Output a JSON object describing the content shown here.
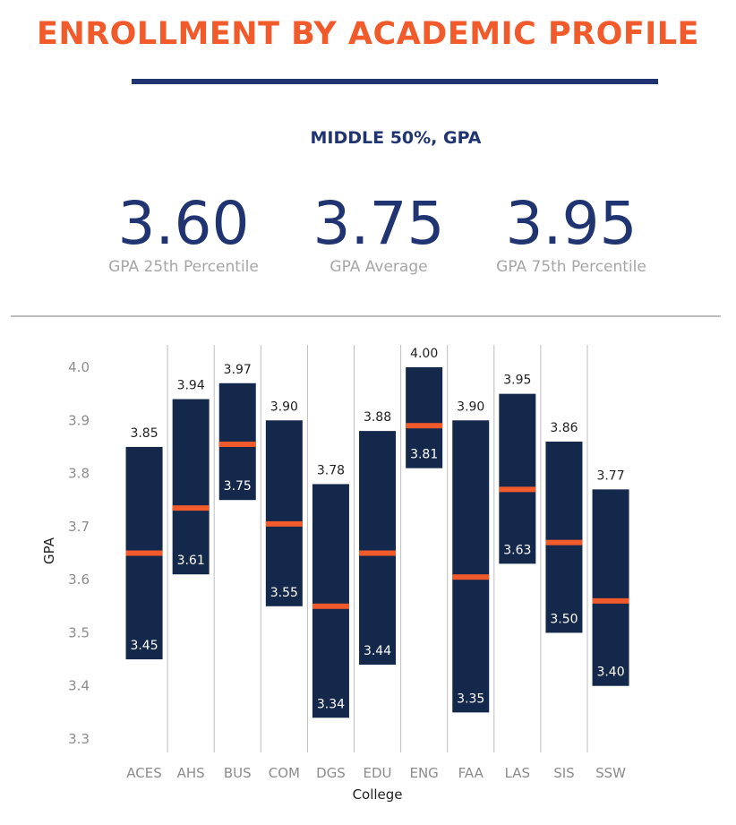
{
  "header": {
    "title": "ENROLLMENT BY ACADEMIC PROFILE",
    "subtitle": "MIDDLE 50%, GPA"
  },
  "stats": [
    {
      "value": "3.60",
      "label": "GPA 25th Percentile"
    },
    {
      "value": "3.75",
      "label": "GPA Average"
    },
    {
      "value": "3.95",
      "label": "GPA 75th Percentile"
    }
  ],
  "colors": {
    "accent": "#f15a2b",
    "navy": "#1f3470",
    "bar": "#14284b",
    "grid": "#bdbdbd",
    "muted": "#a6a6a6"
  },
  "chart_data": {
    "type": "bar",
    "xlabel": "College",
    "ylabel": "GPA",
    "ylim": [
      3.3,
      4.0
    ],
    "yticks": [
      3.3,
      3.4,
      3.5,
      3.6,
      3.7,
      3.8,
      3.9,
      4.0
    ],
    "categories": [
      "ACES",
      "AHS",
      "BUS",
      "COM",
      "DGS",
      "EDU",
      "ENG",
      "FAA",
      "LAS",
      "SIS",
      "SSW"
    ],
    "low": [
      3.45,
      3.61,
      3.75,
      3.55,
      3.34,
      3.44,
      3.81,
      3.35,
      3.63,
      3.5,
      3.4
    ],
    "high": [
      3.85,
      3.94,
      3.97,
      3.9,
      3.78,
      3.88,
      4.0,
      3.9,
      3.95,
      3.86,
      3.77
    ],
    "mean": [
      3.65,
      3.735,
      3.855,
      3.705,
      3.55,
      3.65,
      3.89,
      3.605,
      3.77,
      3.67,
      3.56
    ],
    "low_labels": [
      "3.45",
      "3.61",
      "3.75",
      "3.55",
      "3.34",
      "3.44",
      "3.81",
      "3.35",
      "3.63",
      "3.50",
      "3.40"
    ],
    "high_labels": [
      "3.85",
      "3.94",
      "3.97",
      "3.90",
      "3.78",
      "3.88",
      "4.00",
      "3.90",
      "3.95",
      "3.86",
      "3.77"
    ]
  }
}
